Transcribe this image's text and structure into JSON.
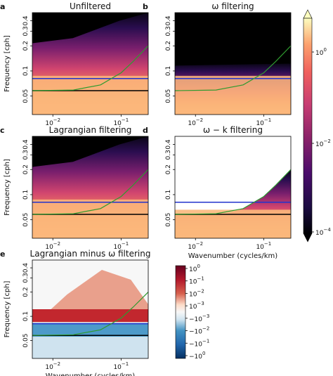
{
  "figure": {
    "colors": {
      "blue_line": "#2233cc",
      "black_line": "#000000",
      "green_line": "#2f9a2f",
      "panel_bg": "#000000"
    },
    "colorbar_magma": {
      "ticks": [
        "10^0",
        "10^-2",
        "10^-4"
      ],
      "scale": "log",
      "range": [
        0.0001,
        3
      ]
    },
    "colorbar_rdbu": {
      "ticks": [
        "10^0",
        "10^-1",
        "10^-2",
        "10^-3",
        "-10^-3",
        "-10^-2",
        "-10^-1",
        "-10^0"
      ],
      "scale": "symlog"
    }
  },
  "chart_data": [
    {
      "panel": "a",
      "title": "Unfiltered",
      "type": "heatmap",
      "colormap": "magma",
      "xscale": "log",
      "yscale": "log",
      "xlim": [
        0.005,
        0.25
      ],
      "ylim": [
        0.03,
        0.5
      ],
      "x_ticks": [
        "10^-2",
        "10^-1"
      ],
      "y_ticks": [
        "0.4",
        "0.3",
        "0.2",
        "0.1",
        "0.05"
      ],
      "ylabel": "Frequency [cph]",
      "xlabel": "",
      "lines": [
        {
          "color": "blue",
          "y": 0.081
        },
        {
          "color": "black",
          "y": 0.058
        },
        {
          "color": "green",
          "type": "curve",
          "x": [
            0.02,
            0.05,
            0.1,
            0.15,
            0.25
          ],
          "y": [
            0.059,
            0.068,
            0.095,
            0.13,
            0.2
          ]
        }
      ]
    },
    {
      "panel": "b",
      "title": "ω filtering",
      "type": "heatmap",
      "colormap": "magma",
      "xscale": "log",
      "yscale": "log",
      "xlim": [
        0.005,
        0.25
      ],
      "ylim": [
        0.03,
        0.5
      ],
      "x_ticks": [
        "10^-2",
        "10^-1"
      ],
      "y_ticks": [
        "0.4",
        "0.3",
        "0.2",
        "0.1",
        "0.05"
      ],
      "xlabel": "",
      "lines": [
        {
          "color": "blue",
          "y": 0.081
        },
        {
          "color": "green",
          "type": "curve",
          "x": [
            0.02,
            0.05,
            0.1,
            0.15,
            0.25
          ],
          "y": [
            0.059,
            0.068,
            0.095,
            0.13,
            0.2
          ]
        }
      ]
    },
    {
      "panel": "c",
      "title": "Lagrangian filtering",
      "type": "heatmap",
      "colormap": "magma",
      "xscale": "log",
      "yscale": "log",
      "xlim": [
        0.005,
        0.25
      ],
      "ylim": [
        0.03,
        0.5
      ],
      "x_ticks": [
        "10^-2",
        "10^-1"
      ],
      "y_ticks": [
        "0.4",
        "0.3",
        "0.2",
        "0.1",
        "0.05"
      ],
      "ylabel": "Frequency [cph]",
      "xlabel": "",
      "lines": [
        {
          "color": "blue",
          "y": 0.081
        },
        {
          "color": "black",
          "y": 0.058
        },
        {
          "color": "green",
          "type": "curve",
          "x": [
            0.02,
            0.05,
            0.1,
            0.15,
            0.25
          ],
          "y": [
            0.059,
            0.068,
            0.095,
            0.13,
            0.2
          ]
        }
      ]
    },
    {
      "panel": "d",
      "title": "ω − k filtering",
      "type": "heatmap",
      "colormap": "magma",
      "xscale": "log",
      "yscale": "log",
      "xlim": [
        0.005,
        0.25
      ],
      "ylim": [
        0.03,
        0.5
      ],
      "x_ticks": [
        "10^-2",
        "10^-1"
      ],
      "y_ticks": [
        "0.4",
        "0.3",
        "0.2",
        "0.1",
        "0.05"
      ],
      "xlabel": "Wavenumber (cycles/km)",
      "lines": [
        {
          "color": "blue",
          "y": 0.081
        },
        {
          "color": "black",
          "y": 0.058
        },
        {
          "color": "green",
          "type": "curve",
          "x": [
            0.02,
            0.05,
            0.1,
            0.15,
            0.25
          ],
          "y": [
            0.059,
            0.068,
            0.095,
            0.13,
            0.2
          ]
        }
      ]
    },
    {
      "panel": "e",
      "title": "Lagrangian minus ω filtering",
      "type": "heatmap",
      "colormap": "RdBu_r",
      "xscale": "log",
      "yscale": "log",
      "xlim": [
        0.005,
        0.25
      ],
      "ylim": [
        0.03,
        0.5
      ],
      "x_ticks": [
        "10^-2",
        "10^-1"
      ],
      "y_ticks": [
        "0.4",
        "0.3",
        "0.2",
        "0.1",
        "0.05"
      ],
      "ylabel": "Frequency [cph]",
      "xlabel": "Wavenumber (cycles/km)",
      "lines": [
        {
          "color": "blue",
          "y": 0.081
        },
        {
          "color": "black",
          "y": 0.058
        },
        {
          "color": "green",
          "type": "curve",
          "x": [
            0.02,
            0.05,
            0.1,
            0.15,
            0.25
          ],
          "y": [
            0.059,
            0.068,
            0.095,
            0.13,
            0.2
          ]
        }
      ]
    }
  ]
}
